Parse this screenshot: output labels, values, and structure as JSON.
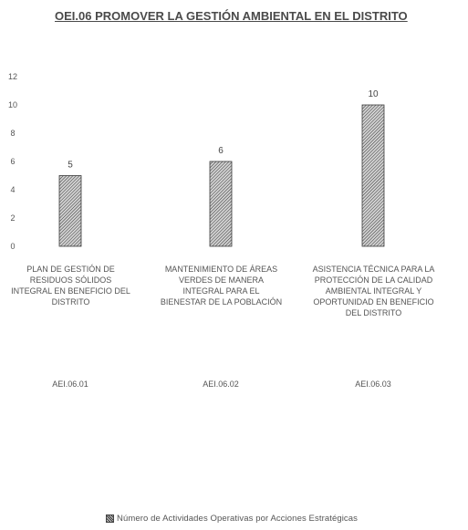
{
  "chart_data": {
    "type": "bar",
    "title": "OEI.06 PROMOVER LA GESTIÓN AMBIENTAL EN EL DISTRITO",
    "categories": [
      "PLAN DE GESTIÓN DE RESIDUOS SÓLIDOS INTEGRAL EN BENEFICIO DEL DISTRITO",
      "MANTENIMIENTO DE ÁREAS VERDES DE MANERA INTEGRAL PARA EL BIENESTAR DE LA POBLACIÓN",
      "ASISTENCIA TÉCNICA PARA LA PROTECCIÓN DE LA CALIDAD AMBIENTAL INTEGRAL Y OPORTUNIDAD EN BENEFICIO DEL DISTRITO"
    ],
    "codes": [
      "AEI.06.01",
      "AEI.06.02",
      "AEI.06.03"
    ],
    "series": [
      {
        "name": "Número de Actividades Operativas por Acciones Estratégicas",
        "values": [
          5,
          6,
          10
        ]
      }
    ],
    "y_ticks": [
      0,
      2,
      4,
      6,
      8,
      10,
      12
    ],
    "ylim": [
      0,
      12
    ],
    "xlabel": "",
    "ylabel": "",
    "grid": false,
    "data_labels": true,
    "legend_position": "bottom",
    "bar_fill": "#9a9a9a",
    "bar_stroke": "#3a3a3a"
  }
}
